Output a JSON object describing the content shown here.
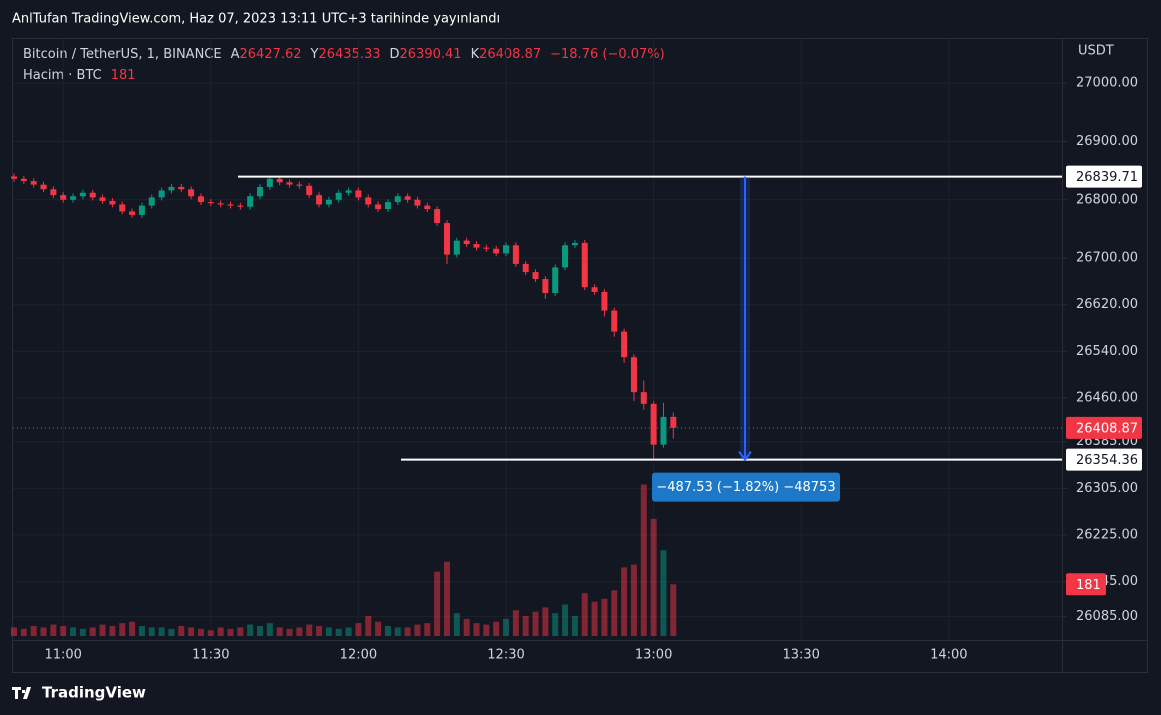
{
  "chart_data": {
    "type": "candlestick",
    "publisher": "AnlTufan TradingView.com, Haz 07, 2023 13:11 UTC+3 tarihinde yayınlandı",
    "symbol": "Bitcoin / TetherUS, 1, BINANCE",
    "ohlc_labels": [
      "A",
      "Y",
      "D",
      "K"
    ],
    "change": "−18.76 (−0.07%)",
    "volume_label": "Hacim · BTC",
    "unit": "USDT",
    "brand": "TradingView",
    "measure_label": "−487.53 (−1.82%) −48753",
    "levels": [
      26839.71,
      26354.36
    ],
    "up_color": "#089981",
    "down_color": "#f23645",
    "grid": true,
    "x": [
      "10:50",
      "10:52",
      "10:54",
      "10:56",
      "10:58",
      "11:00",
      "11:02",
      "11:04",
      "11:06",
      "11:08",
      "11:10",
      "11:12",
      "11:14",
      "11:16",
      "11:18",
      "11:20",
      "11:22",
      "11:24",
      "11:26",
      "11:28",
      "11:30",
      "11:32",
      "11:34",
      "11:36",
      "11:38",
      "11:40",
      "11:42",
      "11:44",
      "11:46",
      "11:48",
      "11:50",
      "11:52",
      "11:54",
      "11:56",
      "11:58",
      "12:00",
      "12:02",
      "12:04",
      "12:06",
      "12:08",
      "12:10",
      "12:12",
      "12:14",
      "12:16",
      "12:18",
      "12:20",
      "12:22",
      "12:24",
      "12:26",
      "12:28",
      "12:30",
      "12:32",
      "12:34",
      "12:36",
      "12:38",
      "12:40",
      "12:42",
      "12:44",
      "12:46",
      "12:48",
      "12:50",
      "12:52",
      "12:54",
      "12:56",
      "12:58",
      "13:00",
      "13:02",
      "13:04"
    ],
    "open": [
      26840,
      26836,
      26832,
      26826,
      26818,
      26808,
      26800,
      26806,
      26812,
      26804,
      26798,
      26792,
      26780,
      26774,
      26790,
      26804,
      26816,
      26822,
      26818,
      26806,
      26796,
      26794,
      26792,
      26790,
      26788,
      26806,
      26822,
      26836,
      26830,
      26826,
      26824,
      26808,
      26792,
      26800,
      26812,
      26816,
      26804,
      26792,
      26784,
      26796,
      26806,
      26800,
      26790,
      26784,
      26760,
      26706,
      26730,
      26724,
      26718,
      26716,
      26708,
      26722,
      26690,
      26676,
      26664,
      26640,
      26684,
      26722,
      26726,
      26650,
      26642,
      26610,
      26574,
      26530,
      26470,
      26450,
      26380,
      26427.62
    ],
    "high": [
      26845,
      26841,
      26837,
      26831,
      26823,
      26813,
      26811,
      26817,
      26817,
      26809,
      26803,
      26797,
      26785,
      26795,
      26809,
      26821,
      26827,
      26827,
      26823,
      26811,
      26801,
      26799,
      26797,
      26795,
      26811,
      26827,
      26841,
      26841,
      26835,
      26831,
      26829,
      26813,
      26805,
      26817,
      26821,
      26821,
      26809,
      26797,
      26801,
      26811,
      26811,
      26805,
      26795,
      26789,
      26765,
      26735,
      26735,
      26729,
      26723,
      26721,
      26727,
      26727,
      26695,
      26681,
      26669,
      26689,
      26727,
      26731,
      26731,
      26655,
      26647,
      26615,
      26579,
      26535,
      26490,
      26455,
      26452,
      26435.33
    ],
    "low": [
      26831,
      26827,
      26821,
      26813,
      26803,
      26795,
      26795,
      26801,
      26799,
      26793,
      26787,
      26775,
      26769,
      26769,
      26785,
      26799,
      26811,
      26813,
      26801,
      26791,
      26789,
      26787,
      26785,
      26783,
      26783,
      26801,
      26817,
      26825,
      26821,
      26819,
      26803,
      26787,
      26787,
      26795,
      26807,
      26799,
      26787,
      26779,
      26779,
      26791,
      26795,
      26785,
      26779,
      26755,
      26690,
      26701,
      26719,
      26713,
      26711,
      26703,
      26703,
      26685,
      26671,
      26659,
      26630,
      26635,
      26679,
      26717,
      26645,
      26637,
      26600,
      26565,
      26520,
      26455,
      26440,
      26354.36,
      26375,
      26390.41
    ],
    "close": [
      26836,
      26832,
      26826,
      26818,
      26808,
      26800,
      26806,
      26812,
      26804,
      26798,
      26792,
      26780,
      26774,
      26790,
      26804,
      26816,
      26822,
      26818,
      26806,
      26796,
      26794,
      26792,
      26790,
      26788,
      26806,
      26822,
      26836,
      26830,
      26826,
      26824,
      26808,
      26792,
      26800,
      26812,
      26816,
      26804,
      26792,
      26784,
      26796,
      26806,
      26800,
      26790,
      26784,
      26760,
      26706,
      26730,
      26724,
      26718,
      26716,
      26708,
      26722,
      26690,
      26676,
      26664,
      26640,
      26684,
      26722,
      26726,
      26650,
      26642,
      26610,
      26574,
      26530,
      26470,
      26450,
      26380,
      26427.62,
      26408.87
    ],
    "volume": [
      30,
      25,
      35,
      30,
      40,
      35,
      30,
      25,
      30,
      40,
      35,
      45,
      50,
      35,
      30,
      30,
      25,
      35,
      30,
      25,
      20,
      30,
      25,
      30,
      40,
      35,
      45,
      30,
      25,
      30,
      40,
      35,
      30,
      25,
      30,
      45,
      70,
      50,
      35,
      30,
      30,
      40,
      45,
      225,
      260,
      80,
      60,
      45,
      40,
      50,
      60,
      90,
      70,
      85,
      100,
      80,
      110,
      70,
      150,
      120,
      130,
      160,
      240,
      250,
      530,
      410,
      300,
      181
    ],
    "volume_ylim": [
      0,
      2100
    ],
    "xlim": [
      "10:50",
      "14:23"
    ],
    "xticks": [
      "11:00",
      "11:30",
      "12:00",
      "12:30",
      "13:00",
      "13:30",
      "14:00"
    ],
    "ylim": [
      26045,
      27074
    ],
    "yticks": [
      {
        "value": 27000,
        "label": "27000.00"
      },
      {
        "value": 26900,
        "label": "26900.00"
      },
      {
        "value": 26800,
        "label": "26800.00"
      },
      {
        "value": 26700,
        "label": "26700.00"
      },
      {
        "value": 26620,
        "label": "26620.00"
      },
      {
        "value": 26540,
        "label": "26540.00"
      },
      {
        "value": 26460,
        "label": "26460.00"
      },
      {
        "value": 26385,
        "label": "26385.00"
      },
      {
        "value": 26305,
        "label": "26305.00"
      },
      {
        "value": 26225,
        "label": "26225.00"
      },
      {
        "value": 26145,
        "label": "26145.00"
      },
      {
        "value": 26085,
        "label": "26085.00"
      }
    ]
  }
}
